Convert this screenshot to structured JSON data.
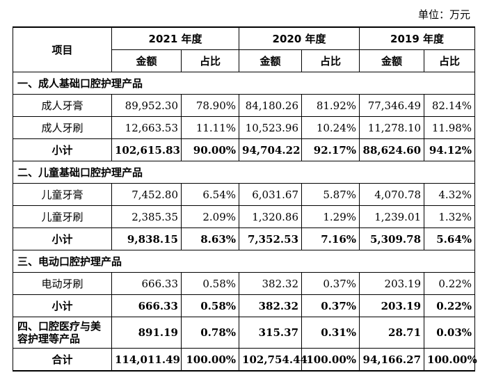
{
  "unit_label": "单位：万元",
  "header": {
    "item": "项目",
    "years": [
      "2021 年度",
      "2020 年度",
      "2019 年度"
    ],
    "amount": "金额",
    "ratio": "占比"
  },
  "sections": [
    {
      "title": "一、成人基础口腔护理产品",
      "rows": [
        {
          "name": "成人牙膏",
          "v": [
            "89,952.30",
            "78.90%",
            "84,180.26",
            "81.92%",
            "77,346.49",
            "82.14%"
          ]
        },
        {
          "name": "成人牙刷",
          "v": [
            "12,663.53",
            "11.11%",
            "10,523.96",
            "10.24%",
            "11,278.10",
            "11.98%"
          ]
        }
      ],
      "subtotal": {
        "name": "小计",
        "v": [
          "102,615.83",
          "90.00%",
          "94,704.22",
          "92.17%",
          "88,624.60",
          "94.12%"
        ]
      }
    },
    {
      "title": "二、儿童基础口腔护理产品",
      "rows": [
        {
          "name": "儿童牙膏",
          "v": [
            "7,452.80",
            "6.54%",
            "6,031.67",
            "5.87%",
            "4,070.78",
            "4.32%"
          ]
        },
        {
          "name": "儿童牙刷",
          "v": [
            "2,385.35",
            "2.09%",
            "1,320.86",
            "1.29%",
            "1,239.01",
            "1.32%"
          ]
        }
      ],
      "subtotal": {
        "name": "小计",
        "v": [
          "9,838.15",
          "8.63%",
          "7,352.53",
          "7.16%",
          "5,309.78",
          "5.64%"
        ]
      }
    },
    {
      "title": "三、电动口腔护理产品",
      "rows": [
        {
          "name": "电动牙刷",
          "v": [
            "666.33",
            "0.58%",
            "382.32",
            "0.37%",
            "203.19",
            "0.22%"
          ]
        }
      ],
      "subtotal": {
        "name": "小计",
        "v": [
          "666.33",
          "0.58%",
          "382.32",
          "0.37%",
          "203.19",
          "0.22%"
        ]
      }
    }
  ],
  "section4": {
    "name": "四、口腔医疗与美容护理等产品",
    "v": [
      "891.19",
      "0.78%",
      "315.37",
      "0.31%",
      "28.71",
      "0.03%"
    ]
  },
  "total": {
    "name": "合计",
    "v": [
      "114,011.49",
      "100.00%",
      "102,754.44",
      "100.00%",
      "94,166.27",
      "100.00%"
    ]
  }
}
